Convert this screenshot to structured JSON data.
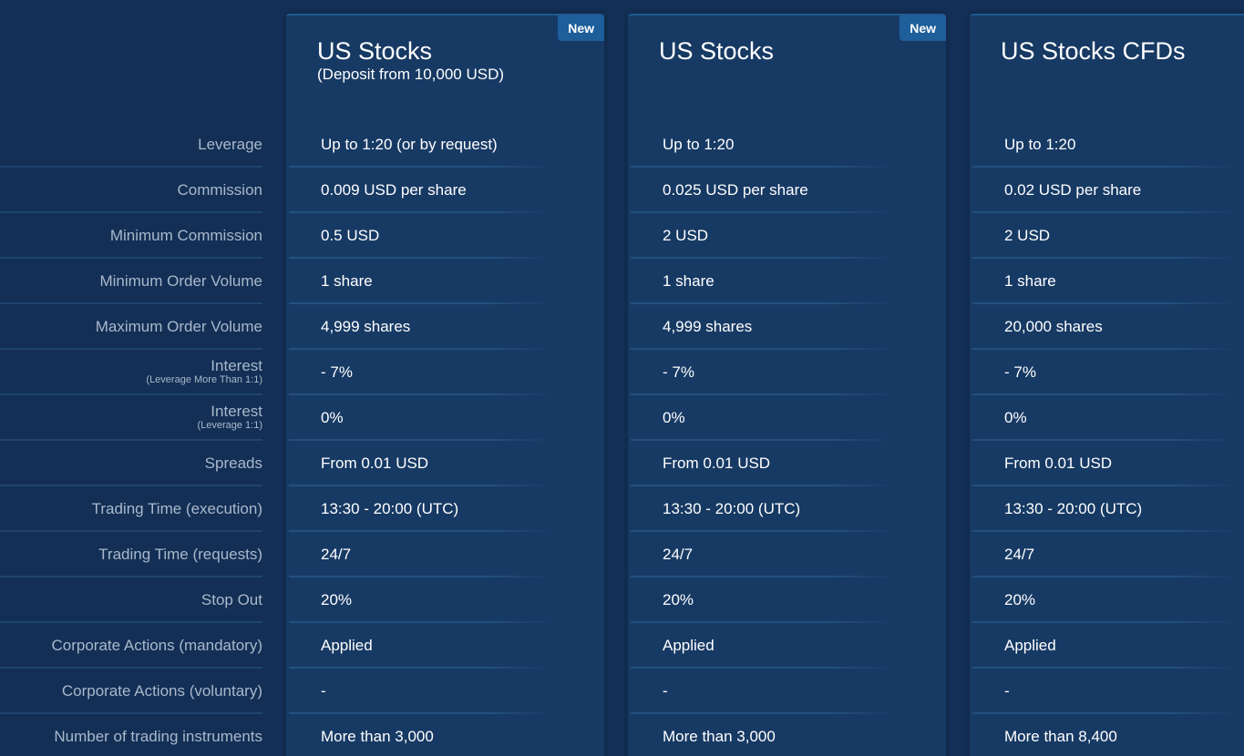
{
  "rows": [
    {
      "label": "Leverage",
      "sub": ""
    },
    {
      "label": "Commission",
      "sub": ""
    },
    {
      "label": "Minimum Commission",
      "sub": ""
    },
    {
      "label": "Minimum Order Volume",
      "sub": ""
    },
    {
      "label": "Maximum Order Volume",
      "sub": ""
    },
    {
      "label": "Interest",
      "sub": "(Leverage More Than 1:1)"
    },
    {
      "label": "Interest",
      "sub": "(Leverage 1:1)"
    },
    {
      "label": "Spreads",
      "sub": ""
    },
    {
      "label": "Trading Time (execution)",
      "sub": ""
    },
    {
      "label": "Trading Time (requests)",
      "sub": ""
    },
    {
      "label": "Stop Out",
      "sub": ""
    },
    {
      "label": "Corporate Actions (mandatory)",
      "sub": ""
    },
    {
      "label": "Corporate Actions (voluntary)",
      "sub": ""
    },
    {
      "label": "Number of trading instruments",
      "sub": ""
    }
  ],
  "plans": [
    {
      "badge": "New",
      "title": "US Stocks",
      "subtitle": "(Deposit from 10,000 USD)",
      "values": [
        "Up to 1:20 (or by request)",
        "0.009 USD per share",
        "0.5 USD",
        "1 share",
        "4,999 shares",
        "- 7%",
        "0%",
        "From 0.01 USD",
        "13:30 - 20:00 (UTC)",
        "24/7",
        "20%",
        "Applied",
        "-",
        "More than 3,000"
      ]
    },
    {
      "badge": "New",
      "title": "US Stocks",
      "subtitle": "",
      "values": [
        "Up to 1:20",
        "0.025 USD per share",
        "2 USD",
        "1 share",
        "4,999 shares",
        "- 7%",
        "0%",
        "From 0.01 USD",
        "13:30 - 20:00 (UTC)",
        "24/7",
        "20%",
        "Applied",
        "-",
        "More than 3,000"
      ]
    },
    {
      "badge": "",
      "title": "US Stocks CFDs",
      "subtitle": "",
      "values": [
        "Up to 1:20",
        "0.02 USD per share",
        "2 USD",
        "1 share",
        "20,000 shares",
        "- 7%",
        "0%",
        "From 0.01 USD",
        "13:30 - 20:00 (UTC)",
        "24/7",
        "20%",
        "Applied",
        "-",
        "More than 8,400"
      ]
    }
  ]
}
